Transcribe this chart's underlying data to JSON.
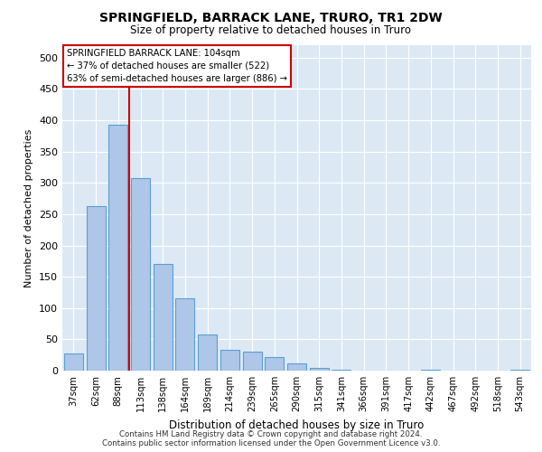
{
  "title": "SPRINGFIELD, BARRACK LANE, TRURO, TR1 2DW",
  "subtitle": "Size of property relative to detached houses in Truro",
  "xlabel": "Distribution of detached houses by size in Truro",
  "ylabel": "Number of detached properties",
  "footer": "Contains HM Land Registry data © Crown copyright and database right 2024.\nContains public sector information licensed under the Open Government Licence v3.0.",
  "categories": [
    "37sqm",
    "62sqm",
    "88sqm",
    "113sqm",
    "138sqm",
    "164sqm",
    "189sqm",
    "214sqm",
    "239sqm",
    "265sqm",
    "290sqm",
    "315sqm",
    "341sqm",
    "366sqm",
    "391sqm",
    "417sqm",
    "442sqm",
    "467sqm",
    "492sqm",
    "518sqm",
    "543sqm"
  ],
  "values": [
    28,
    263,
    393,
    307,
    170,
    115,
    58,
    33,
    30,
    22,
    12,
    5,
    1,
    0,
    0,
    0,
    1,
    0,
    0,
    0,
    1
  ],
  "bar_color": "#aec6e8",
  "bar_edgecolor": "#5a9fd4",
  "background_color": "#dce9f5",
  "vline_color": "#cc0000",
  "annotation_text": "SPRINGFIELD BARRACK LANE: 104sqm\n← 37% of detached houses are smaller (522)\n63% of semi-detached houses are larger (886) →",
  "annotation_box_edgecolor": "#cc0000",
  "ylim": [
    0,
    520
  ],
  "yticks": [
    0,
    50,
    100,
    150,
    200,
    250,
    300,
    350,
    400,
    450,
    500
  ]
}
